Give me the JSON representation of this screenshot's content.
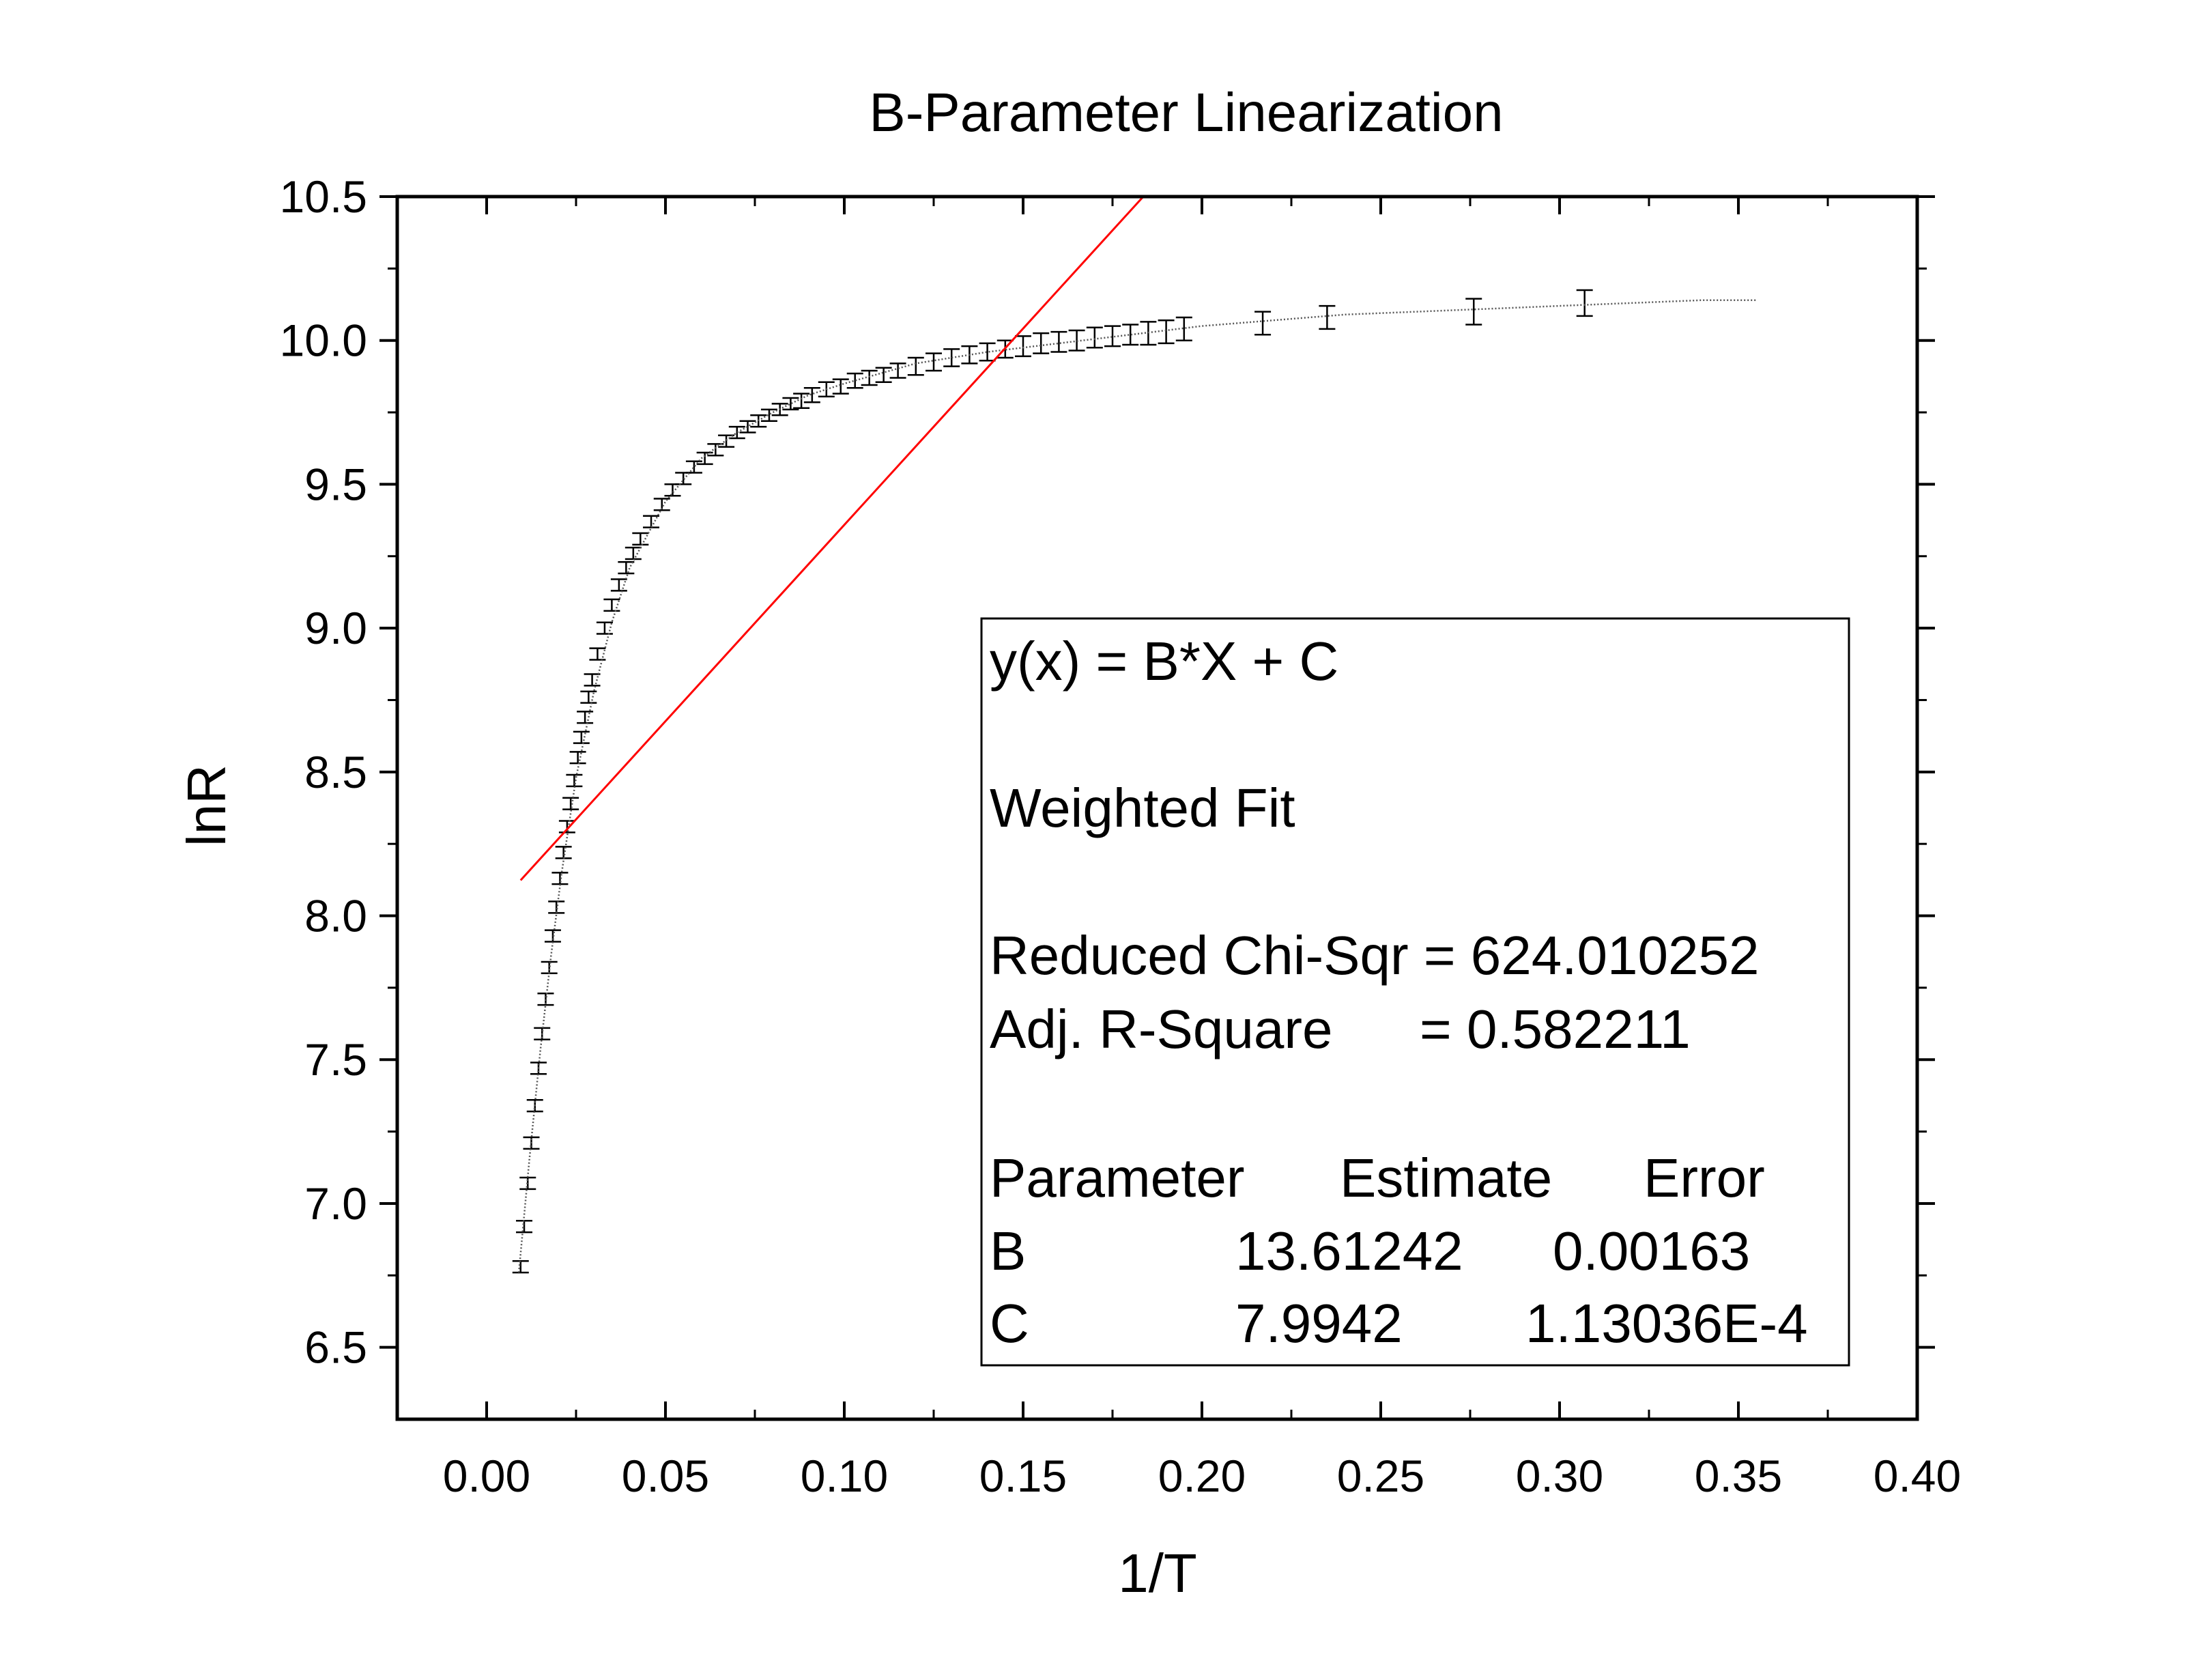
{
  "chart_data": {
    "type": "scatter",
    "title": "B-Parameter Linearization",
    "xlabel": "1/T",
    "ylabel": "lnR",
    "xlim": [
      -0.025,
      0.4
    ],
    "ylim": [
      6.25,
      10.5
    ],
    "x_ticks": [
      "0.00",
      "0.05",
      "0.10",
      "0.15",
      "0.20",
      "0.25",
      "0.30",
      "0.35",
      "0.40"
    ],
    "y_ticks": [
      "6.5",
      "7.0",
      "7.5",
      "8.0",
      "8.5",
      "9.0",
      "9.5",
      "10.0",
      "10.5"
    ],
    "grid": false,
    "series": [
      {
        "style": "error-bars",
        "color": "#000000",
        "x": [
          0.0095,
          0.0105,
          0.0115,
          0.0125,
          0.0135,
          0.0145,
          0.0155,
          0.0165,
          0.0175,
          0.0185,
          0.0195,
          0.0205,
          0.0215,
          0.0225,
          0.0235,
          0.0245,
          0.0255,
          0.0265,
          0.0275,
          0.0285,
          0.0295,
          0.031,
          0.033,
          0.035,
          0.037,
          0.039,
          0.041,
          0.043,
          0.046,
          0.049,
          0.052,
          0.055,
          0.058,
          0.061,
          0.064,
          0.067,
          0.07,
          0.073,
          0.076,
          0.079,
          0.082,
          0.085,
          0.088,
          0.091,
          0.095,
          0.099,
          0.103,
          0.107,
          0.111,
          0.115,
          0.12,
          0.125,
          0.13,
          0.135,
          0.14,
          0.145,
          0.15,
          0.155,
          0.16,
          0.165,
          0.17,
          0.175,
          0.18,
          0.185,
          0.19,
          0.195,
          0.217,
          0.235,
          0.276,
          0.307
        ],
        "y": [
          6.78,
          6.92,
          7.07,
          7.21,
          7.34,
          7.47,
          7.59,
          7.71,
          7.82,
          7.93,
          8.03,
          8.13,
          8.22,
          8.31,
          8.39,
          8.47,
          8.55,
          8.62,
          8.69,
          8.76,
          8.82,
          8.91,
          9.0,
          9.08,
          9.15,
          9.21,
          9.26,
          9.31,
          9.37,
          9.43,
          9.48,
          9.52,
          9.56,
          9.59,
          9.62,
          9.65,
          9.68,
          9.7,
          9.72,
          9.74,
          9.76,
          9.78,
          9.79,
          9.81,
          9.83,
          9.84,
          9.86,
          9.87,
          9.88,
          9.895,
          9.91,
          9.925,
          9.94,
          9.95,
          9.96,
          9.97,
          9.98,
          9.99,
          9.995,
          10.0,
          10.01,
          10.015,
          10.02,
          10.025,
          10.03,
          10.04,
          10.06,
          10.08,
          10.1,
          10.13
        ],
        "error": [
          0.02,
          0.02,
          0.02,
          0.02,
          0.02,
          0.02,
          0.02,
          0.02,
          0.02,
          0.02,
          0.02,
          0.02,
          0.02,
          0.02,
          0.02,
          0.02,
          0.02,
          0.02,
          0.02,
          0.02,
          0.02,
          0.02,
          0.02,
          0.02,
          0.02,
          0.02,
          0.02,
          0.02,
          0.02,
          0.02,
          0.02,
          0.02,
          0.02,
          0.02,
          0.02,
          0.02,
          0.02,
          0.02,
          0.02,
          0.02,
          0.02,
          0.02,
          0.025,
          0.025,
          0.025,
          0.025,
          0.025,
          0.025,
          0.025,
          0.025,
          0.03,
          0.03,
          0.03,
          0.03,
          0.03,
          0.03,
          0.035,
          0.035,
          0.035,
          0.035,
          0.035,
          0.035,
          0.035,
          0.04,
          0.04,
          0.04,
          0.04,
          0.04,
          0.045,
          0.045
        ]
      },
      {
        "style": "dotted-line",
        "color": "#555555",
        "x": [
          0.009,
          0.012,
          0.015,
          0.018,
          0.021,
          0.025,
          0.03,
          0.035,
          0.04,
          0.05,
          0.06,
          0.07,
          0.08,
          0.09,
          0.1,
          0.12,
          0.14,
          0.16,
          0.18,
          0.2,
          0.22,
          0.24,
          0.26,
          0.28,
          0.3,
          0.32,
          0.34,
          0.355
        ],
        "y": [
          6.76,
          7.16,
          7.53,
          7.86,
          8.15,
          8.48,
          8.78,
          9.02,
          9.21,
          9.44,
          9.59,
          9.68,
          9.75,
          9.81,
          9.85,
          9.92,
          9.96,
          9.99,
          10.02,
          10.05,
          10.07,
          10.09,
          10.1,
          10.11,
          10.12,
          10.13,
          10.14,
          10.14
        ]
      },
      {
        "style": "fit-line",
        "color": "#ff0000",
        "x": [
          0.0095,
          0.1836
        ],
        "y": [
          8.1235,
          10.5
        ]
      }
    ],
    "fit_box": {
      "equation": "y(x) = B*X + C",
      "method": "Weighted Fit",
      "chi_sqr": "Reduced Chi-Sqr = 624.010252",
      "adj_r2_label": "Adj. R-Square",
      "adj_r2_value": "= 0.582211",
      "headers": [
        "Parameter",
        "Estimate",
        "Error"
      ],
      "rows": [
        [
          "B",
          "13.61242",
          "0.00163"
        ],
        [
          "C",
          "7.9942",
          "1.13036E-4"
        ]
      ]
    }
  }
}
